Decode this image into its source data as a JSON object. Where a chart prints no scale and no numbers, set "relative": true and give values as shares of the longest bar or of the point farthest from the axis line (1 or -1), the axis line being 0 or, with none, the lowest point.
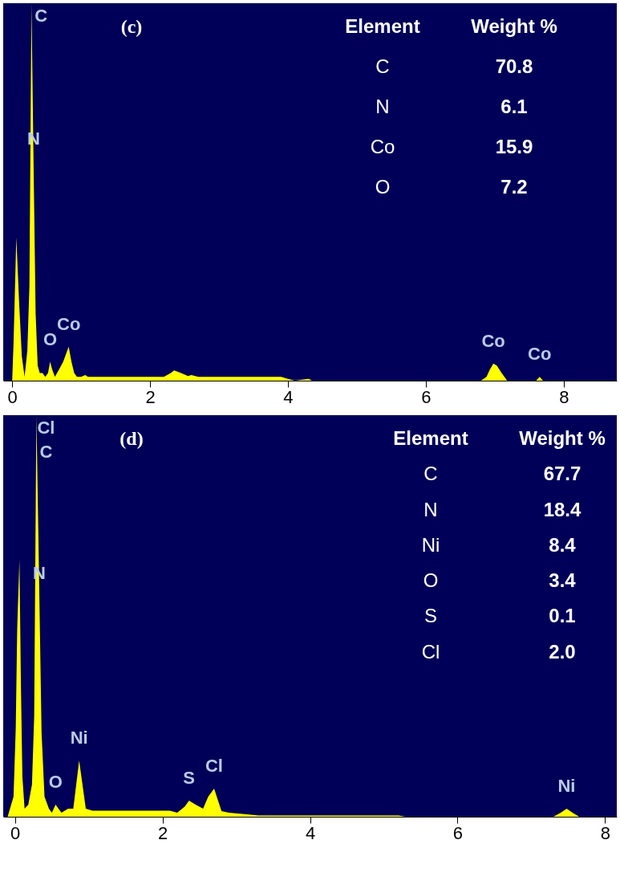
{
  "chart_data": [
    {
      "type": "area",
      "title": "(c)",
      "relative": true,
      "color": "#ffff00",
      "grid": false,
      "x": [
        -0.1,
        0.0,
        0.02,
        0.06,
        0.1,
        0.14,
        0.18,
        0.22,
        0.25,
        0.28,
        0.31,
        0.34,
        0.37,
        0.4,
        0.44,
        0.48,
        0.52,
        0.55,
        0.58,
        0.62,
        0.68,
        0.74,
        0.78,
        0.82,
        0.86,
        0.9,
        0.94,
        1.0,
        1.06,
        1.1,
        1.2,
        2.2,
        2.3,
        2.35,
        2.45,
        2.55,
        2.6,
        2.7,
        3.9,
        4.0,
        4.1,
        4.3,
        4.35,
        6.8,
        6.88,
        6.93,
        6.98,
        7.03,
        7.1,
        7.18,
        7.6,
        7.65,
        7.7,
        8.7
      ],
      "values": [
        0,
        0,
        0.1,
        0.38,
        0.21,
        0.065,
        0.01,
        0.08,
        0.25,
        1.0,
        0.58,
        0.18,
        0.04,
        0.02,
        0.02,
        0.01,
        0.02,
        0.05,
        0.03,
        0.01,
        0.03,
        0.05,
        0.07,
        0.09,
        0.05,
        0.02,
        0.01,
        0.01,
        0.015,
        0.01,
        0.01,
        0.01,
        0.02,
        0.027,
        0.02,
        0.012,
        0.015,
        0.01,
        0.01,
        0.005,
        0,
        0.005,
        0,
        0,
        0.01,
        0.03,
        0.045,
        0.04,
        0.02,
        0,
        0,
        0.01,
        0,
        0
      ],
      "xlim": [
        -0.13,
        8.77
      ],
      "xticks": [
        0,
        2,
        4,
        6,
        8
      ],
      "annotations": [
        {
          "text": "C",
          "x": 0.28,
          "y": 1.0
        },
        {
          "text": "N",
          "x": 0.31,
          "y": 0.58
        },
        {
          "text": "Co",
          "x": 0.82,
          "y": 0.09
        },
        {
          "text": "O",
          "x": 0.55,
          "y": 0.05
        },
        {
          "text": "Co",
          "x": 6.98,
          "y": 0.045
        },
        {
          "text": "Co",
          "x": 7.65,
          "y": 0.01
        },
        "Element",
        "Weight %",
        "C",
        "70.8",
        "N",
        "6.1",
        "Co",
        "15.9",
        "O",
        "7.2"
      ]
    },
    {
      "type": "area",
      "title": "(d)",
      "relative": true,
      "color": "#ffff00",
      "grid": false,
      "x": [
        -0.1,
        -0.02,
        0.01,
        0.03,
        0.06,
        0.08,
        0.1,
        0.13,
        0.18,
        0.23,
        0.26,
        0.29,
        0.33,
        0.36,
        0.4,
        0.46,
        0.5,
        0.55,
        0.63,
        0.72,
        0.79,
        0.87,
        0.9,
        0.96,
        1.05,
        1.2,
        2.1,
        2.2,
        2.3,
        2.36,
        2.45,
        2.55,
        2.62,
        2.7,
        2.8,
        2.9,
        3.2,
        3.3,
        4.0,
        5.2,
        5.3,
        7.3,
        7.4,
        7.48,
        7.56,
        7.65,
        8.1
      ],
      "values": [
        0,
        0.05,
        0.22,
        0.47,
        0.64,
        0.33,
        0.1,
        0.02,
        0.03,
        0.08,
        0.25,
        1.0,
        0.55,
        0.21,
        0.05,
        0.02,
        0.01,
        0.03,
        0.01,
        0.02,
        0.02,
        0.14,
        0.1,
        0.02,
        0.015,
        0.015,
        0.015,
        0.01,
        0.025,
        0.04,
        0.03,
        0.02,
        0.05,
        0.07,
        0.014,
        0.01,
        0.005,
        0.003,
        0.003,
        0.003,
        0,
        0,
        0.01,
        0.02,
        0.01,
        0,
        0
      ],
      "xlim": [
        -0.16,
        8.16
      ],
      "xticks": [
        0,
        2,
        4,
        6,
        8
      ],
      "annotations": [
        {
          "text": "Cl",
          "x": 0.29,
          "y": 1.0
        },
        {
          "text": "C",
          "x": 0.29,
          "y": 1.0
        },
        {
          "text": "N",
          "x": 0.33,
          "y": 0.55
        },
        {
          "text": "Ni",
          "x": 0.87,
          "y": 0.14
        },
        {
          "text": "O",
          "x": 0.55,
          "y": 0.03
        },
        {
          "text": "S",
          "x": 2.36,
          "y": 0.04
        },
        {
          "text": "Cl",
          "x": 2.7,
          "y": 0.07
        },
        {
          "text": "Ni",
          "x": 7.48,
          "y": 0.02
        },
        "Element",
        "Weight %",
        "C",
        "67.7",
        "N",
        "18.4",
        "Ni",
        "8.4",
        "O",
        "3.4",
        "S",
        "0.1",
        "Cl",
        "2.0"
      ]
    }
  ]
}
